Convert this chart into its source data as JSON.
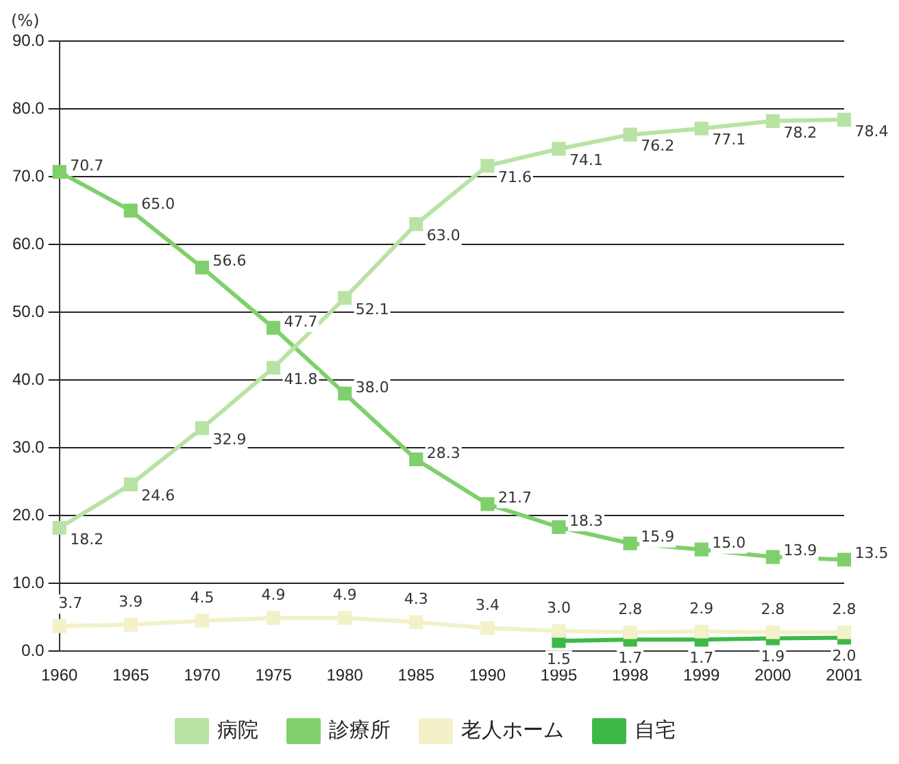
{
  "chart_data": {
    "type": "line",
    "ylabel": "(%)",
    "categories": [
      "1960",
      "1965",
      "1970",
      "1975",
      "1980",
      "1985",
      "1990",
      "1995",
      "1998",
      "1999",
      "2000",
      "2001"
    ],
    "series": [
      {
        "name": "病院",
        "color": "#b8e3a4",
        "values": [
          18.2,
          24.6,
          32.9,
          41.8,
          52.1,
          63.0,
          71.6,
          74.1,
          76.2,
          77.1,
          78.2,
          78.4
        ],
        "value_labels": [
          "18.2",
          "24.6",
          "32.9",
          "41.8",
          "52.1",
          "63.0",
          "71.6",
          "74.1",
          "76.2",
          "77.1",
          "78.2",
          "78.4"
        ]
      },
      {
        "name": "診療所",
        "color": "#7fd06c",
        "values": [
          70.7,
          65.0,
          56.6,
          47.7,
          38.0,
          28.3,
          21.7,
          18.3,
          15.9,
          15.0,
          13.9,
          13.5
        ],
        "value_labels": [
          "70.7",
          "65.0",
          "56.6",
          "47.7",
          "38.0",
          "28.3",
          "21.7",
          "18.3",
          "15.9",
          "15.0",
          "13.9",
          "13.5"
        ]
      },
      {
        "name": "老人ホーム",
        "color": "#f3f1c8",
        "values": [
          3.7,
          3.9,
          4.5,
          4.9,
          4.9,
          4.3,
          3.4,
          3.0,
          2.8,
          2.9,
          2.8,
          2.8
        ],
        "value_labels": [
          "3.7",
          "3.9",
          "4.5",
          "4.9",
          "4.9",
          "4.3",
          "3.4",
          "3.0",
          "2.8",
          "2.9",
          "2.8",
          "2.8"
        ]
      },
      {
        "name": "自宅",
        "color": "#3fb84a",
        "values": [
          null,
          null,
          null,
          null,
          null,
          null,
          null,
          1.5,
          1.7,
          1.7,
          1.9,
          2.0
        ],
        "value_labels": [
          null,
          null,
          null,
          null,
          null,
          null,
          null,
          "1.5",
          "1.7",
          "1.7",
          "1.9",
          "2.0"
        ]
      }
    ],
    "ylim": [
      0,
      90
    ],
    "yticks": [
      {
        "value": 0,
        "label": "0.0"
      },
      {
        "value": 10,
        "label": "10.0"
      },
      {
        "value": 20,
        "label": "20.0"
      },
      {
        "value": 30,
        "label": "30.0"
      },
      {
        "value": 40,
        "label": "40.0"
      },
      {
        "value": 50,
        "label": "50.0"
      },
      {
        "value": 60,
        "label": "60.0"
      },
      {
        "value": 70,
        "label": "70.0"
      },
      {
        "value": 80,
        "label": "80.0"
      },
      {
        "value": 90,
        "label": "90.0"
      }
    ],
    "grid": "y",
    "legend": "bottom",
    "marker": "square",
    "line_style": "solid"
  }
}
